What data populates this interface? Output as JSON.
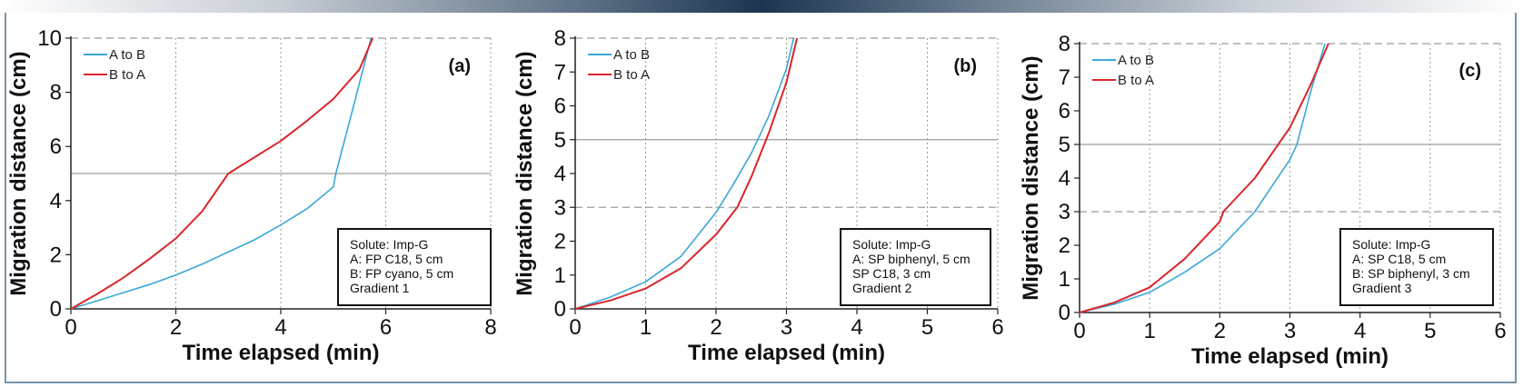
{
  "colors": {
    "a_to_b": "#3aa8d8",
    "b_to_a": "#d9262c",
    "grid": "#9a9a9a",
    "axis": "#222222",
    "frame": "#7a93aa"
  },
  "chart_data": [
    {
      "type": "line",
      "panel_label": "(a)",
      "xlabel": "Time elapsed (min)",
      "ylabel": "Migration distance (cm)",
      "xlim": [
        0,
        8
      ],
      "ylim": [
        0,
        10
      ],
      "xticks": [
        0,
        2,
        4,
        6,
        8
      ],
      "yticks": [
        0,
        2,
        4,
        6,
        8,
        10
      ],
      "grid": "vertical dotted",
      "reference_lines": [
        {
          "y": 5,
          "style": "solid"
        },
        {
          "y": 10,
          "style": "dashed"
        }
      ],
      "legend_position": "top-left",
      "series": [
        {
          "name": "A to B",
          "color": "#3aa8d8",
          "x": [
            0,
            0.5,
            1,
            1.5,
            2,
            2.5,
            3,
            3.5,
            4,
            4.5,
            5,
            5.05,
            5.4,
            5.72
          ],
          "y": [
            0,
            0.3,
            0.6,
            0.9,
            1.25,
            1.65,
            2.1,
            2.55,
            3.1,
            3.7,
            4.5,
            5,
            7.6,
            10
          ]
        },
        {
          "name": "B to A",
          "color": "#d9262c",
          "x": [
            0,
            0.5,
            1,
            1.5,
            2,
            2.5,
            3,
            3.5,
            4,
            4.5,
            5,
            5.5,
            5.75
          ],
          "y": [
            0,
            0.55,
            1.15,
            1.85,
            2.6,
            3.6,
            5,
            5.6,
            6.2,
            6.95,
            7.75,
            8.85,
            10
          ]
        }
      ],
      "info_box": [
        "Solute: Imp-G",
        "A: FP C18, 5 cm",
        "B: FP cyano, 5 cm",
        "Gradient 1"
      ]
    },
    {
      "type": "line",
      "panel_label": "(b)",
      "xlabel": "Time elapsed (min)",
      "ylabel": "Migration distance (cm)",
      "xlim": [
        0,
        6
      ],
      "ylim": [
        0,
        8
      ],
      "xticks": [
        0,
        1,
        2,
        3,
        4,
        5,
        6
      ],
      "yticks": [
        0,
        1,
        2,
        3,
        4,
        5,
        6,
        7,
        8
      ],
      "grid": "vertical dotted",
      "reference_lines": [
        {
          "y": 3,
          "style": "dashed"
        },
        {
          "y": 5,
          "style": "solid"
        },
        {
          "y": 8,
          "style": "dashed"
        }
      ],
      "legend_position": "top-left",
      "series": [
        {
          "name": "A to B",
          "color": "#3aa8d8",
          "x": [
            0,
            0.5,
            1,
            1.5,
            2,
            2.25,
            2.5,
            2.75,
            3,
            3.1
          ],
          "y": [
            0,
            0.35,
            0.8,
            1.55,
            2.85,
            3.7,
            4.6,
            5.7,
            7.1,
            8
          ]
        },
        {
          "name": "B to A",
          "color": "#d9262c",
          "x": [
            0,
            0.5,
            1,
            1.5,
            2,
            2.3,
            2.5,
            2.75,
            3,
            3.15
          ],
          "y": [
            0,
            0.25,
            0.6,
            1.2,
            2.2,
            3,
            3.9,
            5.2,
            6.7,
            8
          ]
        }
      ],
      "info_box": [
        "Solute: Imp-G",
        "A: SP biphenyl, 5 cm",
        "SP C18, 3 cm",
        "Gradient 2"
      ]
    },
    {
      "type": "line",
      "panel_label": "(c)",
      "xlabel": "Time elapsed (min)",
      "ylabel": "Migration distance (cm)",
      "xlim": [
        0,
        6
      ],
      "ylim": [
        0,
        8
      ],
      "xticks": [
        0,
        1,
        2,
        3,
        4,
        5,
        6
      ],
      "yticks": [
        0,
        1,
        2,
        3,
        4,
        5,
        6,
        7,
        8
      ],
      "grid": "vertical dotted",
      "reference_lines": [
        {
          "y": 3,
          "style": "dashed"
        },
        {
          "y": 5,
          "style": "solid"
        },
        {
          "y": 8,
          "style": "dashed"
        }
      ],
      "legend_position": "top-left",
      "series": [
        {
          "name": "A to B",
          "color": "#3aa8d8",
          "x": [
            0,
            0.5,
            1,
            1.5,
            2,
            2.5,
            3,
            3.1,
            3.3,
            3.5
          ],
          "y": [
            0,
            0.25,
            0.6,
            1.2,
            1.9,
            3,
            4.55,
            5,
            6.6,
            8
          ]
        },
        {
          "name": "B to A",
          "color": "#d9262c",
          "x": [
            0,
            0.5,
            1,
            1.5,
            2,
            2.05,
            2.5,
            3,
            3.3,
            3.55
          ],
          "y": [
            0,
            0.3,
            0.75,
            1.6,
            2.7,
            3,
            4,
            5.5,
            6.8,
            8
          ]
        }
      ],
      "info_box": [
        "Solute: Imp-G",
        "A: SP C18, 5 cm",
        "B: SP biphenyl, 3 cm",
        "Gradient 3"
      ]
    }
  ]
}
